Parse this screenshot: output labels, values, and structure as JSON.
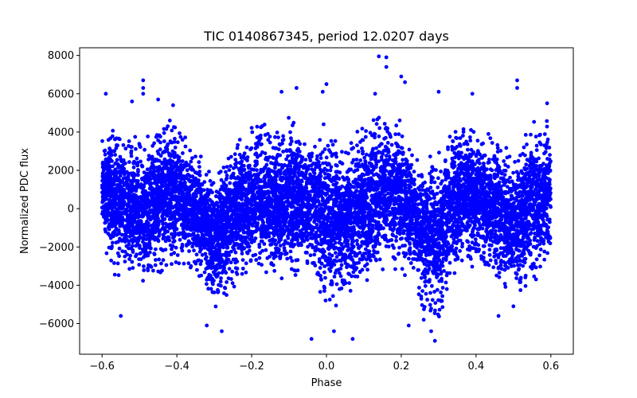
{
  "chart_data": {
    "type": "scatter",
    "title": "TIC 0140867345, period 12.0207 days",
    "xlabel": "Phase",
    "ylabel": "Normalized PDC flux",
    "xlim": [
      -0.66,
      0.66
    ],
    "ylim": [
      -7600,
      8400
    ],
    "xticks": [
      -0.6,
      -0.4,
      -0.2,
      0.0,
      0.2,
      0.4,
      0.6
    ],
    "xtick_labels": [
      "−0.6",
      "−0.4",
      "−0.2",
      "0.0",
      "0.2",
      "0.4",
      "0.6"
    ],
    "yticks": [
      -6000,
      -4000,
      -2000,
      0,
      2000,
      4000,
      6000,
      8000
    ],
    "ytick_labels": [
      "−6000",
      "−4000",
      "−2000",
      "0",
      "2000",
      "4000",
      "6000",
      "8000"
    ],
    "grid": false,
    "marker_color": "#0000ff",
    "series": [
      {
        "name": "flux",
        "phase_range": [
          -0.6,
          0.6
        ],
        "envelope": [
          {
            "x": -0.6,
            "lo": -1500,
            "hi": 3500
          },
          {
            "x": -0.55,
            "lo": -3500,
            "hi": 4000
          },
          {
            "x": -0.5,
            "lo": -3500,
            "hi": 3200
          },
          {
            "x": -0.45,
            "lo": -3000,
            "hi": 4000
          },
          {
            "x": -0.4,
            "lo": -2500,
            "hi": 4500
          },
          {
            "x": -0.35,
            "lo": -3000,
            "hi": 2500
          },
          {
            "x": -0.3,
            "lo": -4800,
            "hi": 1500
          },
          {
            "x": -0.25,
            "lo": -4000,
            "hi": 3500
          },
          {
            "x": -0.2,
            "lo": -3000,
            "hi": 4000
          },
          {
            "x": -0.15,
            "lo": -3000,
            "hi": 3800
          },
          {
            "x": -0.1,
            "lo": -3500,
            "hi": 4200
          },
          {
            "x": -0.05,
            "lo": -3000,
            "hi": 3000
          },
          {
            "x": 0.0,
            "lo": -5000,
            "hi": 4000
          },
          {
            "x": 0.05,
            "lo": -4000,
            "hi": 3000
          },
          {
            "x": 0.1,
            "lo": -3500,
            "hi": 3800
          },
          {
            "x": 0.15,
            "lo": -3000,
            "hi": 4500
          },
          {
            "x": 0.2,
            "lo": -2500,
            "hi": 4000
          },
          {
            "x": 0.25,
            "lo": -4500,
            "hi": 2000
          },
          {
            "x": 0.3,
            "lo": -5500,
            "hi": 2500
          },
          {
            "x": 0.35,
            "lo": -3000,
            "hi": 4000
          },
          {
            "x": 0.4,
            "lo": -2500,
            "hi": 4000
          },
          {
            "x": 0.45,
            "lo": -3500,
            "hi": 3500
          },
          {
            "x": 0.5,
            "lo": -4500,
            "hi": 2500
          },
          {
            "x": 0.55,
            "lo": -3500,
            "hi": 4000
          },
          {
            "x": 0.6,
            "lo": -2500,
            "hi": 4000
          }
        ],
        "outliers": [
          {
            "x": -0.59,
            "y": 6000
          },
          {
            "x": -0.49,
            "y": 6700
          },
          {
            "x": -0.49,
            "y": 6300
          },
          {
            "x": -0.49,
            "y": 6000
          },
          {
            "x": -0.52,
            "y": 5600
          },
          {
            "x": -0.45,
            "y": 5700
          },
          {
            "x": -0.41,
            "y": 5400
          },
          {
            "x": -0.12,
            "y": 6100
          },
          {
            "x": -0.08,
            "y": 6300
          },
          {
            "x": -0.01,
            "y": 6100
          },
          {
            "x": 0.0,
            "y": 6500
          },
          {
            "x": 0.14,
            "y": 7950
          },
          {
            "x": 0.16,
            "y": 7900
          },
          {
            "x": 0.16,
            "y": 7400
          },
          {
            "x": 0.2,
            "y": 6900
          },
          {
            "x": 0.21,
            "y": 6600
          },
          {
            "x": 0.13,
            "y": 6000
          },
          {
            "x": 0.3,
            "y": 6100
          },
          {
            "x": 0.39,
            "y": 6000
          },
          {
            "x": 0.51,
            "y": 6700
          },
          {
            "x": 0.51,
            "y": 6300
          },
          {
            "x": 0.59,
            "y": 5500
          },
          {
            "x": -0.32,
            "y": -6100
          },
          {
            "x": -0.28,
            "y": -6400
          },
          {
            "x": -0.04,
            "y": -6800
          },
          {
            "x": 0.07,
            "y": -6800
          },
          {
            "x": 0.02,
            "y": -6400
          },
          {
            "x": 0.28,
            "y": -6400
          },
          {
            "x": 0.29,
            "y": -6900
          },
          {
            "x": 0.22,
            "y": -6100
          },
          {
            "x": -0.55,
            "y": -5600
          },
          {
            "x": 0.26,
            "y": -5800
          },
          {
            "x": 0.46,
            "y": -5600
          },
          {
            "x": 0.5,
            "y": -5100
          }
        ],
        "point_count": 9000
      }
    ]
  }
}
